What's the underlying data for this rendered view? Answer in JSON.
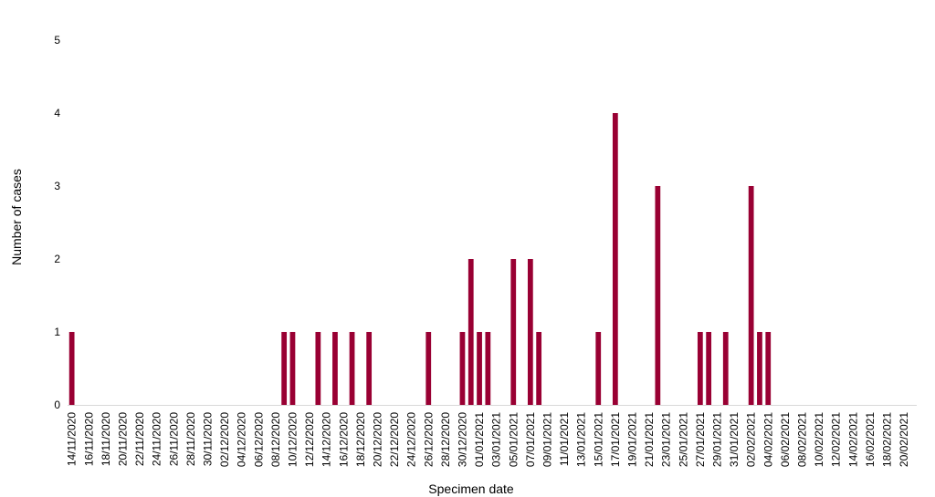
{
  "chart_data": {
    "type": "bar",
    "title": "",
    "xlabel": "Specimen date",
    "ylabel": "Number of cases",
    "ylim": [
      0,
      5
    ],
    "yticks": [
      0,
      1,
      2,
      3,
      4,
      5
    ],
    "grid": false,
    "legend": "none",
    "bar_color": "#990033",
    "axis_color": "#d9d9d9",
    "x": [
      "14/11/2020",
      "15/11/2020",
      "16/11/2020",
      "17/11/2020",
      "18/11/2020",
      "19/11/2020",
      "20/11/2020",
      "21/11/2020",
      "22/11/2020",
      "23/11/2020",
      "24/11/2020",
      "25/11/2020",
      "26/11/2020",
      "27/11/2020",
      "28/11/2020",
      "29/11/2020",
      "30/11/2020",
      "01/12/2020",
      "02/12/2020",
      "03/12/2020",
      "04/12/2020",
      "05/12/2020",
      "06/12/2020",
      "07/12/2020",
      "08/12/2020",
      "09/12/2020",
      "10/12/2020",
      "11/12/2020",
      "12/12/2020",
      "13/12/2020",
      "14/12/2020",
      "15/12/2020",
      "16/12/2020",
      "17/12/2020",
      "18/12/2020",
      "19/12/2020",
      "20/12/2020",
      "21/12/2020",
      "22/12/2020",
      "23/12/2020",
      "24/12/2020",
      "25/12/2020",
      "26/12/2020",
      "27/12/2020",
      "28/12/2020",
      "29/12/2020",
      "30/12/2020",
      "31/12/2020",
      "01/01/2021",
      "02/01/2021",
      "03/01/2021",
      "04/01/2021",
      "05/01/2021",
      "06/01/2021",
      "07/01/2021",
      "08/01/2021",
      "09/01/2021",
      "10/01/2021",
      "11/01/2021",
      "12/01/2021",
      "13/01/2021",
      "14/01/2021",
      "15/01/2021",
      "16/01/2021",
      "17/01/2021",
      "18/01/2021",
      "19/01/2021",
      "20/01/2021",
      "21/01/2021",
      "22/01/2021",
      "23/01/2021",
      "24/01/2021",
      "25/01/2021",
      "26/01/2021",
      "27/01/2021",
      "28/01/2021",
      "29/01/2021",
      "30/01/2021",
      "31/01/2021",
      "01/02/2021",
      "02/02/2021",
      "03/02/2021",
      "04/02/2021",
      "05/02/2021",
      "06/02/2021",
      "07/02/2021",
      "08/02/2021",
      "09/02/2021",
      "10/02/2021",
      "11/02/2021",
      "12/02/2021",
      "13/02/2021",
      "14/02/2021",
      "15/02/2021",
      "16/02/2021",
      "17/02/2021",
      "18/02/2021",
      "19/02/2021",
      "20/02/2021",
      "21/02/2021"
    ],
    "tick_labels": [
      "14/11/2020",
      "16/11/2020",
      "18/11/2020",
      "20/11/2020",
      "22/11/2020",
      "24/11/2020",
      "26/11/2020",
      "28/11/2020",
      "30/11/2020",
      "02/12/2020",
      "04/12/2020",
      "06/12/2020",
      "08/12/2020",
      "10/12/2020",
      "12/12/2020",
      "14/12/2020",
      "16/12/2020",
      "18/12/2020",
      "20/12/2020",
      "22/12/2020",
      "24/12/2020",
      "26/12/2020",
      "28/12/2020",
      "30/12/2020",
      "01/01/2021",
      "03/01/2021",
      "05/01/2021",
      "07/01/2021",
      "09/01/2021",
      "11/01/2021",
      "13/01/2021",
      "15/01/2021",
      "17/01/2021",
      "19/01/2021",
      "21/01/2021",
      "23/01/2021",
      "25/01/2021",
      "27/01/2021",
      "29/01/2021",
      "31/01/2021",
      "02/02/2021",
      "04/02/2021",
      "06/02/2021",
      "08/02/2021",
      "10/02/2021",
      "12/02/2021",
      "14/02/2021",
      "16/02/2021",
      "18/02/2021",
      "20/02/2021"
    ],
    "values": [
      1,
      0,
      0,
      0,
      0,
      0,
      0,
      0,
      0,
      0,
      0,
      0,
      0,
      0,
      0,
      0,
      0,
      0,
      0,
      0,
      0,
      0,
      0,
      0,
      0,
      1,
      1,
      0,
      0,
      1,
      0,
      1,
      0,
      1,
      0,
      1,
      0,
      0,
      0,
      0,
      0,
      0,
      1,
      0,
      0,
      0,
      1,
      2,
      1,
      1,
      0,
      0,
      2,
      0,
      2,
      1,
      0,
      0,
      0,
      0,
      0,
      0,
      1,
      0,
      4,
      0,
      0,
      0,
      0,
      3,
      0,
      0,
      0,
      0,
      1,
      1,
      0,
      1,
      0,
      0,
      3,
      1,
      1,
      0,
      0,
      0,
      0,
      0,
      0,
      0,
      0,
      0,
      0,
      0,
      0,
      0,
      0,
      0,
      0,
      0
    ]
  }
}
